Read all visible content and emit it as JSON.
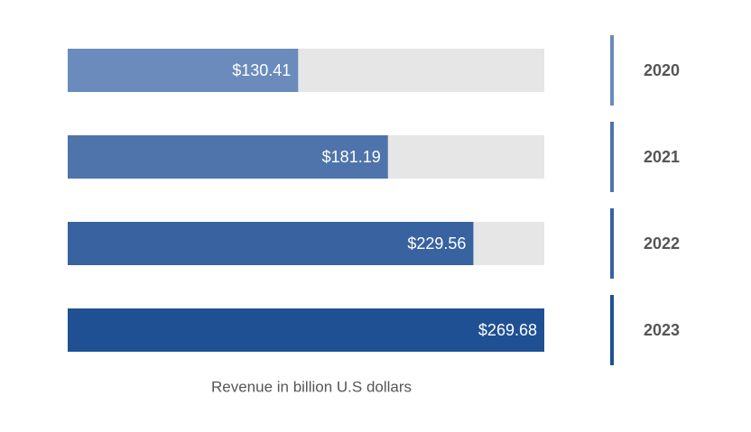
{
  "chart_data": {
    "type": "bar",
    "orientation": "horizontal",
    "categories": [
      "2020",
      "2021",
      "2022",
      "2023"
    ],
    "values": [
      130.41,
      181.19,
      229.56,
      269.68
    ],
    "value_labels": [
      "$130.41",
      "$181.19",
      "$229.56",
      "$269.68"
    ],
    "colors": [
      "#6a8bbb",
      "#4f74ab",
      "#3862a0",
      "#1f5093"
    ],
    "track_color": "#e6e6e6",
    "xlabel": "Revenue in billion U.S dollars"
  }
}
